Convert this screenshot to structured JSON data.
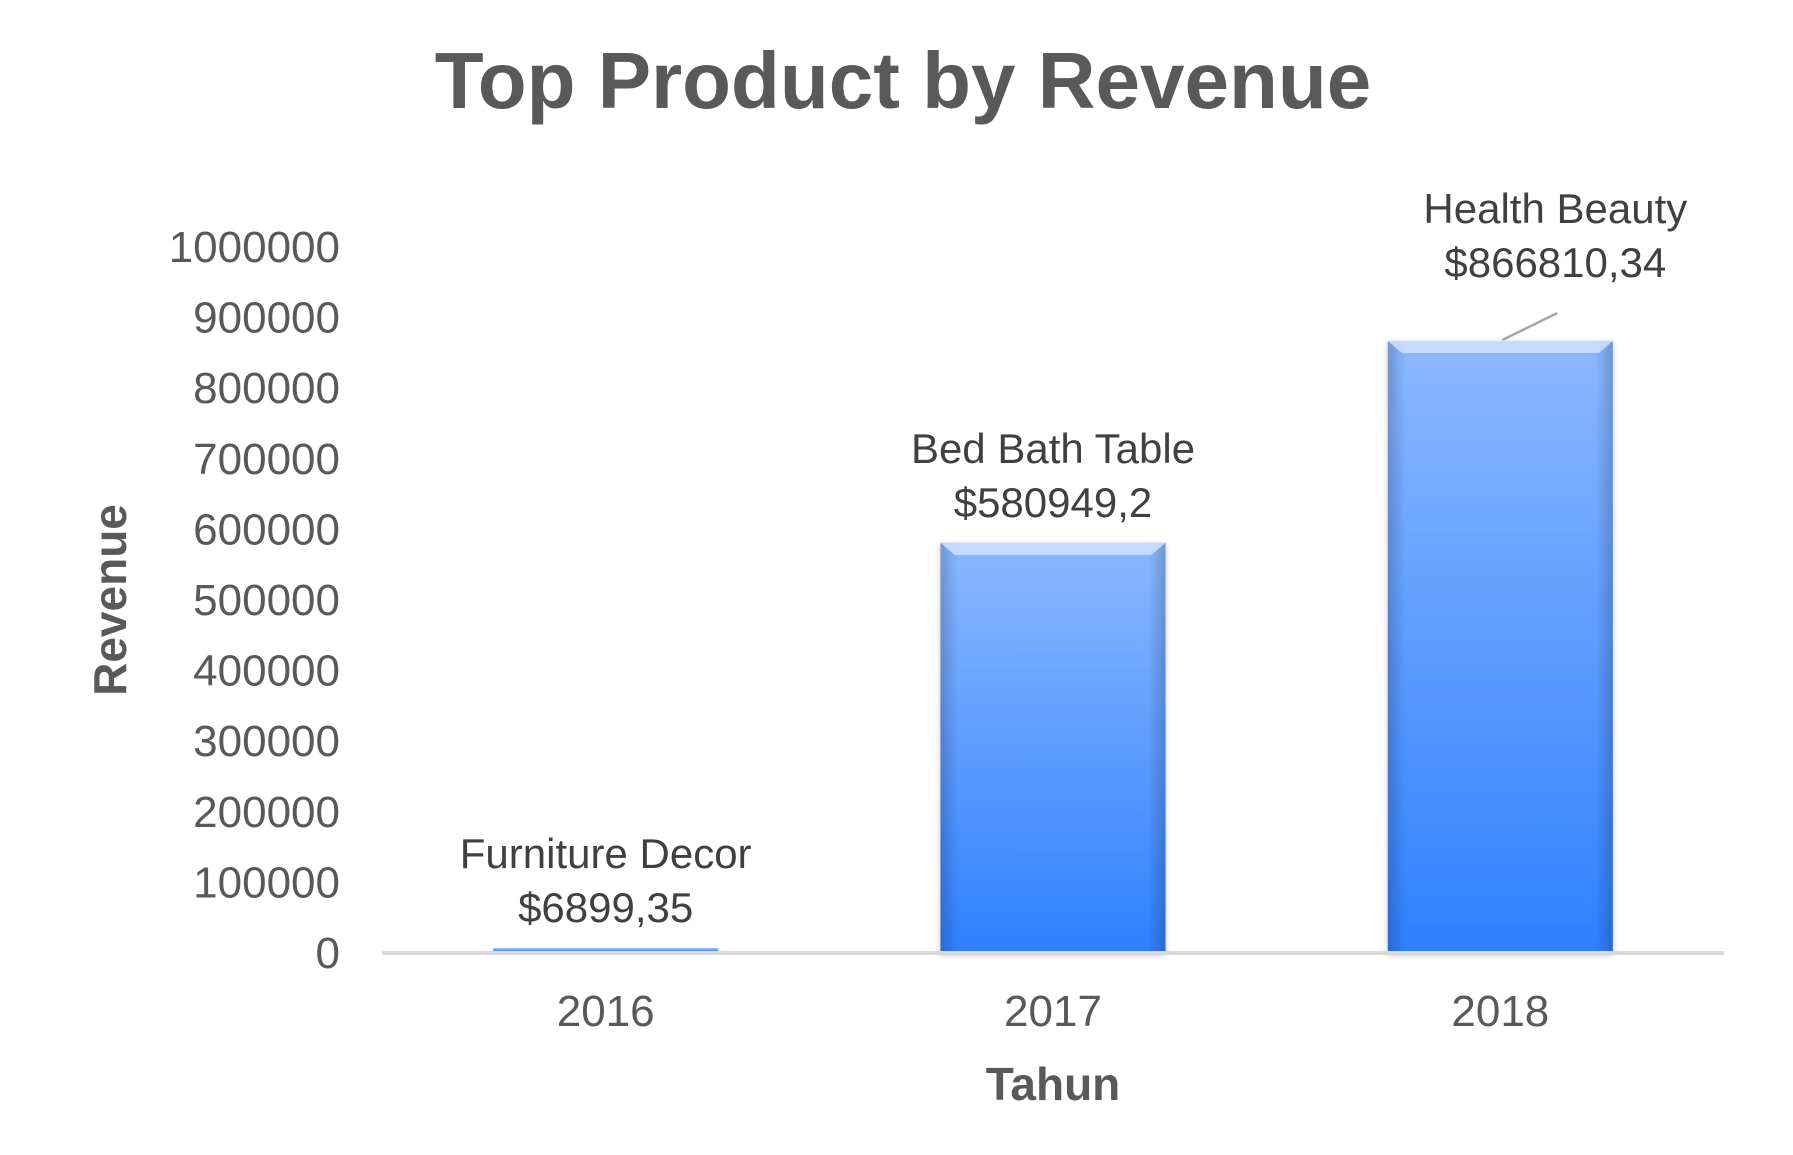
{
  "chart_data": {
    "type": "bar",
    "title": "Top Product by Revenue",
    "xlabel": "Tahun",
    "ylabel": "Revenue",
    "categories": [
      "2016",
      "2017",
      "2018"
    ],
    "values": [
      6899.35,
      580949.2,
      866810.34
    ],
    "data_labels": [
      {
        "product": "Furniture Decor",
        "value_text": "$6899,35"
      },
      {
        "product": "Bed Bath Table",
        "value_text": "$580949,2"
      },
      {
        "product": "Health Beauty",
        "value_text": "$866810,34"
      }
    ],
    "ylim": [
      0,
      1000000
    ],
    "yticks": [
      "0",
      "100000",
      "200000",
      "300000",
      "400000",
      "500000",
      "600000",
      "700000",
      "800000",
      "900000",
      "1000000"
    ],
    "grid": false,
    "legend": "none",
    "colors": {
      "bar_top": "#8bb8ff",
      "bar_bottom": "#2f80ff",
      "axis": "#d9d9d9",
      "text": "#595959",
      "label_text": "#404040",
      "leader_line": "#a6a6a6"
    }
  }
}
